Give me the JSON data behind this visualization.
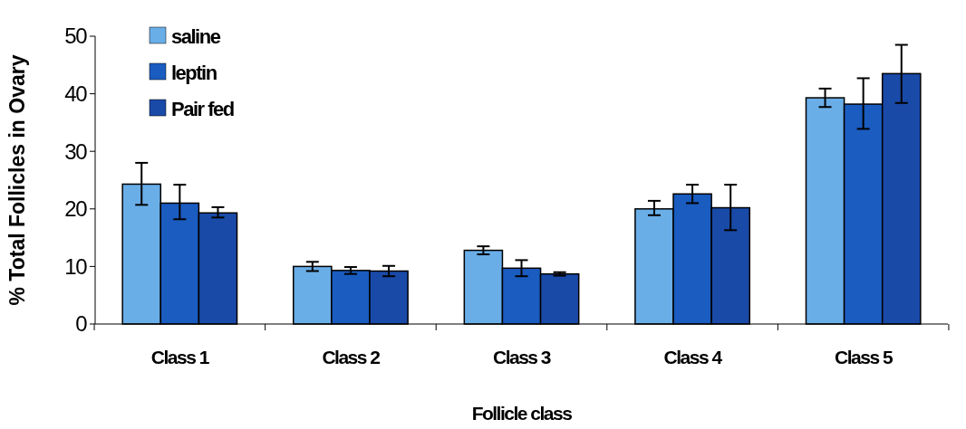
{
  "chart_data": {
    "type": "bar",
    "xlabel": "Follicle class",
    "ylabel": "% Total Follicles in Ovary",
    "categories": [
      "Class 1",
      "Class 2",
      "Class 3",
      "Class 4",
      "Class 5"
    ],
    "series": [
      {
        "name": "saline",
        "color": "#6aaee8",
        "values": [
          24.3,
          10,
          12.8,
          20,
          39.3
        ],
        "errors": [
          [
            20.7,
            28
          ],
          [
            9.2,
            10.8
          ],
          [
            12.1,
            13.5
          ],
          [
            18.9,
            21.4
          ],
          [
            37.7,
            40.9
          ]
        ]
      },
      {
        "name": "leptin",
        "color": "#1a5cc0",
        "values": [
          21,
          9.3,
          9.7,
          22.6,
          38.2
        ],
        "errors": [
          [
            18.2,
            24.2
          ],
          [
            8.7,
            9.9
          ],
          [
            8.3,
            11.1
          ],
          [
            21,
            24.2
          ],
          [
            33.9,
            42.7
          ]
        ]
      },
      {
        "name": "Pair fed",
        "color": "#1a4aa8",
        "values": [
          19.3,
          9.2,
          8.7,
          20.2,
          43.5
        ],
        "errors": [
          [
            18.5,
            20.3
          ],
          [
            8.3,
            10.1
          ],
          [
            8.4,
            9
          ],
          [
            16.3,
            24.2
          ],
          [
            38.4,
            48.5
          ]
        ]
      }
    ],
    "ylim": [
      0,
      50
    ],
    "yticks": [
      0,
      10,
      20,
      30,
      40,
      50
    ],
    "grid": false,
    "legend": "top left"
  }
}
